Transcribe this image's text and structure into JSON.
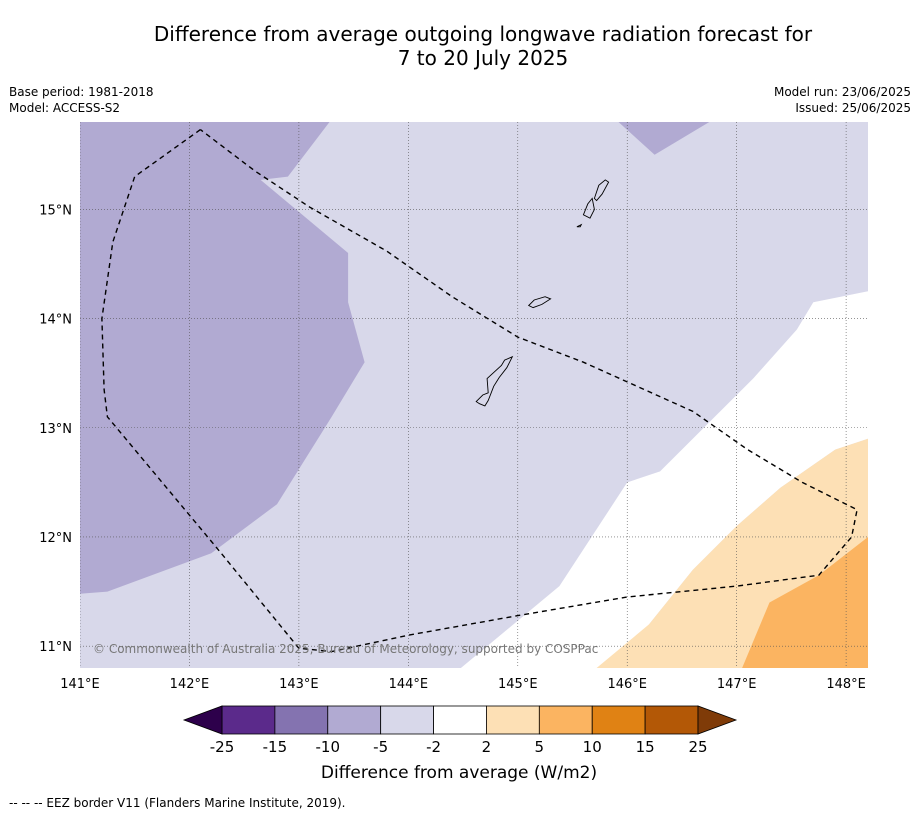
{
  "title": {
    "line1": "Difference from average outgoing longwave radiation forecast for",
    "line2": "7 to 20 July 2025"
  },
  "meta": {
    "base_period": "Base period: 1981-2018",
    "model": "Model: ACCESS-S2",
    "model_run": "Model run: 23/06/2025",
    "issued": "Issued: 25/06/2025"
  },
  "map": {
    "extent": {
      "lon_min": 141.0,
      "lon_max": 148.2,
      "lat_min": 10.8,
      "lat_max": 15.8
    },
    "lat_ticks": [
      {
        "value": 15,
        "label": "15°N"
      },
      {
        "value": 14,
        "label": "14°N"
      },
      {
        "value": 13,
        "label": "13°N"
      },
      {
        "value": 12,
        "label": "12°N"
      },
      {
        "value": 11,
        "label": "11°N"
      }
    ],
    "lon_ticks": [
      {
        "value": 141,
        "label": "141°E"
      },
      {
        "value": 142,
        "label": "142°E"
      },
      {
        "value": 143,
        "label": "143°E"
      },
      {
        "value": 144,
        "label": "144°E"
      },
      {
        "value": 145,
        "label": "145°E"
      },
      {
        "value": 146,
        "label": "146°E"
      },
      {
        "value": 147,
        "label": "147°E"
      },
      {
        "value": 148,
        "label": "148°E"
      }
    ],
    "copyright": "© Commonwealth of Australia 2025, Bureau of Meteorology, supported by COSPPac",
    "colors": {
      "lt_m15": "#5b2a8b",
      "m15_m10": "#8473b0",
      "m10_m5": "#b1aad2",
      "m5_m2": "#d8d8ea",
      "m2_2": "#ffffff",
      "p2_5": "#fde0b5",
      "p5_10": "#fbb461",
      "p10_15": "#e08214",
      "p15_25": "#b35806",
      "lt_m25": "#2d004b",
      "gt_25": "#7f3b08"
    },
    "regions": [
      {
        "name": "neg-10-5-west",
        "color_key": "m10_m5",
        "coords": [
          [
            141.0,
            15.8
          ],
          [
            143.28,
            15.8
          ],
          [
            142.9,
            15.3
          ],
          [
            142.65,
            15.27
          ],
          [
            143.45,
            14.6
          ],
          [
            143.45,
            14.15
          ],
          [
            143.6,
            13.6
          ],
          [
            143.3,
            13.1
          ],
          [
            142.8,
            12.3
          ],
          [
            142.2,
            11.85
          ],
          [
            141.25,
            11.5
          ],
          [
            141.0,
            11.48
          ]
        ]
      },
      {
        "name": "neg-10-5-northeast",
        "color_key": "m10_m5",
        "coords": [
          [
            145.92,
            15.8
          ],
          [
            146.75,
            15.8
          ],
          [
            146.25,
            15.5
          ]
        ]
      },
      {
        "name": "neutral-south",
        "color_key": "m2_2",
        "coords": [
          [
            144.48,
            10.8
          ],
          [
            145.38,
            11.55
          ],
          [
            146.0,
            12.5
          ],
          [
            146.3,
            12.6
          ],
          [
            146.8,
            13.1
          ],
          [
            147.15,
            13.45
          ],
          [
            147.55,
            13.9
          ],
          [
            147.7,
            14.15
          ],
          [
            148.2,
            14.25
          ],
          [
            148.2,
            12.9
          ],
          [
            147.9,
            12.8
          ],
          [
            147.4,
            12.45
          ],
          [
            147.0,
            12.1
          ],
          [
            146.6,
            11.7
          ],
          [
            146.2,
            11.2
          ],
          [
            145.85,
            10.8
          ]
        ]
      },
      {
        "name": "pos-2-5-southeast",
        "color_key": "p2_5",
        "coords": [
          [
            145.72,
            10.8
          ],
          [
            146.2,
            11.2
          ],
          [
            146.6,
            11.7
          ],
          [
            147.0,
            12.1
          ],
          [
            147.4,
            12.45
          ],
          [
            147.9,
            12.8
          ],
          [
            148.2,
            12.9
          ],
          [
            148.2,
            10.8
          ]
        ]
      },
      {
        "name": "pos-5-10-southeast",
        "color_key": "p5_10",
        "coords": [
          [
            147.05,
            10.8
          ],
          [
            147.3,
            11.4
          ],
          [
            147.75,
            11.65
          ],
          [
            148.2,
            12.0
          ],
          [
            148.2,
            10.8
          ]
        ]
      }
    ],
    "eez_border": [
      [
        142.1,
        15.73
      ],
      [
        141.5,
        15.3
      ],
      [
        141.3,
        14.7
      ],
      [
        141.2,
        14.0
      ],
      [
        141.22,
        13.35
      ],
      [
        141.25,
        13.1
      ],
      [
        142.25,
        11.9
      ],
      [
        143.0,
        10.98
      ],
      [
        143.3,
        10.95
      ],
      [
        144.0,
        11.1
      ],
      [
        145.0,
        11.28
      ],
      [
        146.0,
        11.45
      ],
      [
        147.0,
        11.55
      ],
      [
        147.75,
        11.65
      ],
      [
        148.05,
        12.0
      ],
      [
        148.1,
        12.25
      ],
      [
        147.6,
        12.5
      ],
      [
        147.1,
        12.8
      ],
      [
        146.6,
        13.15
      ],
      [
        145.6,
        13.6
      ],
      [
        145.0,
        13.83
      ],
      [
        144.4,
        14.2
      ],
      [
        143.8,
        14.62
      ],
      [
        143.1,
        15.02
      ],
      [
        142.6,
        15.35
      ],
      [
        142.1,
        15.73
      ]
    ]
  },
  "islands": [
    {
      "name": "guam",
      "coords": [
        [
          144.62,
          13.24
        ],
        [
          144.68,
          13.3
        ],
        [
          144.73,
          13.32
        ],
        [
          144.72,
          13.45
        ],
        [
          144.85,
          13.57
        ],
        [
          144.88,
          13.62
        ],
        [
          144.95,
          13.65
        ],
        [
          144.9,
          13.55
        ],
        [
          144.83,
          13.46
        ],
        [
          144.78,
          13.38
        ],
        [
          144.73,
          13.25
        ],
        [
          144.7,
          13.2
        ],
        [
          144.65,
          13.22
        ]
      ]
    },
    {
      "name": "rota",
      "coords": [
        [
          145.1,
          14.12
        ],
        [
          145.15,
          14.17
        ],
        [
          145.25,
          14.2
        ],
        [
          145.3,
          14.18
        ],
        [
          145.22,
          14.13
        ],
        [
          145.14,
          14.1
        ]
      ]
    },
    {
      "name": "tinian",
      "coords": [
        [
          145.6,
          14.95
        ],
        [
          145.64,
          15.05
        ],
        [
          145.68,
          15.1
        ],
        [
          145.7,
          15.0
        ],
        [
          145.66,
          14.92
        ]
      ]
    },
    {
      "name": "saipan",
      "coords": [
        [
          145.7,
          15.1
        ],
        [
          145.74,
          15.22
        ],
        [
          145.8,
          15.27
        ],
        [
          145.83,
          15.25
        ],
        [
          145.77,
          15.14
        ],
        [
          145.72,
          15.08
        ]
      ]
    },
    {
      "name": "aguijan",
      "coords": [
        [
          145.54,
          14.84
        ],
        [
          145.58,
          14.86
        ],
        [
          145.57,
          14.84
        ]
      ]
    }
  ],
  "colorbar": {
    "tick_labels": [
      "-25",
      "-15",
      "-10",
      "-5",
      "-2",
      "2",
      "5",
      "10",
      "15",
      "25"
    ],
    "band_keys": [
      "lt_m15",
      "m15_m10",
      "m10_m5",
      "m5_m2",
      "m2_2",
      "p2_5",
      "p5_10",
      "p10_15",
      "p15_25"
    ],
    "label": "Difference from average (W/m2)"
  },
  "footnote": "--  --  -- EEZ border V11 (Flanders Marine Institute, 2019)."
}
